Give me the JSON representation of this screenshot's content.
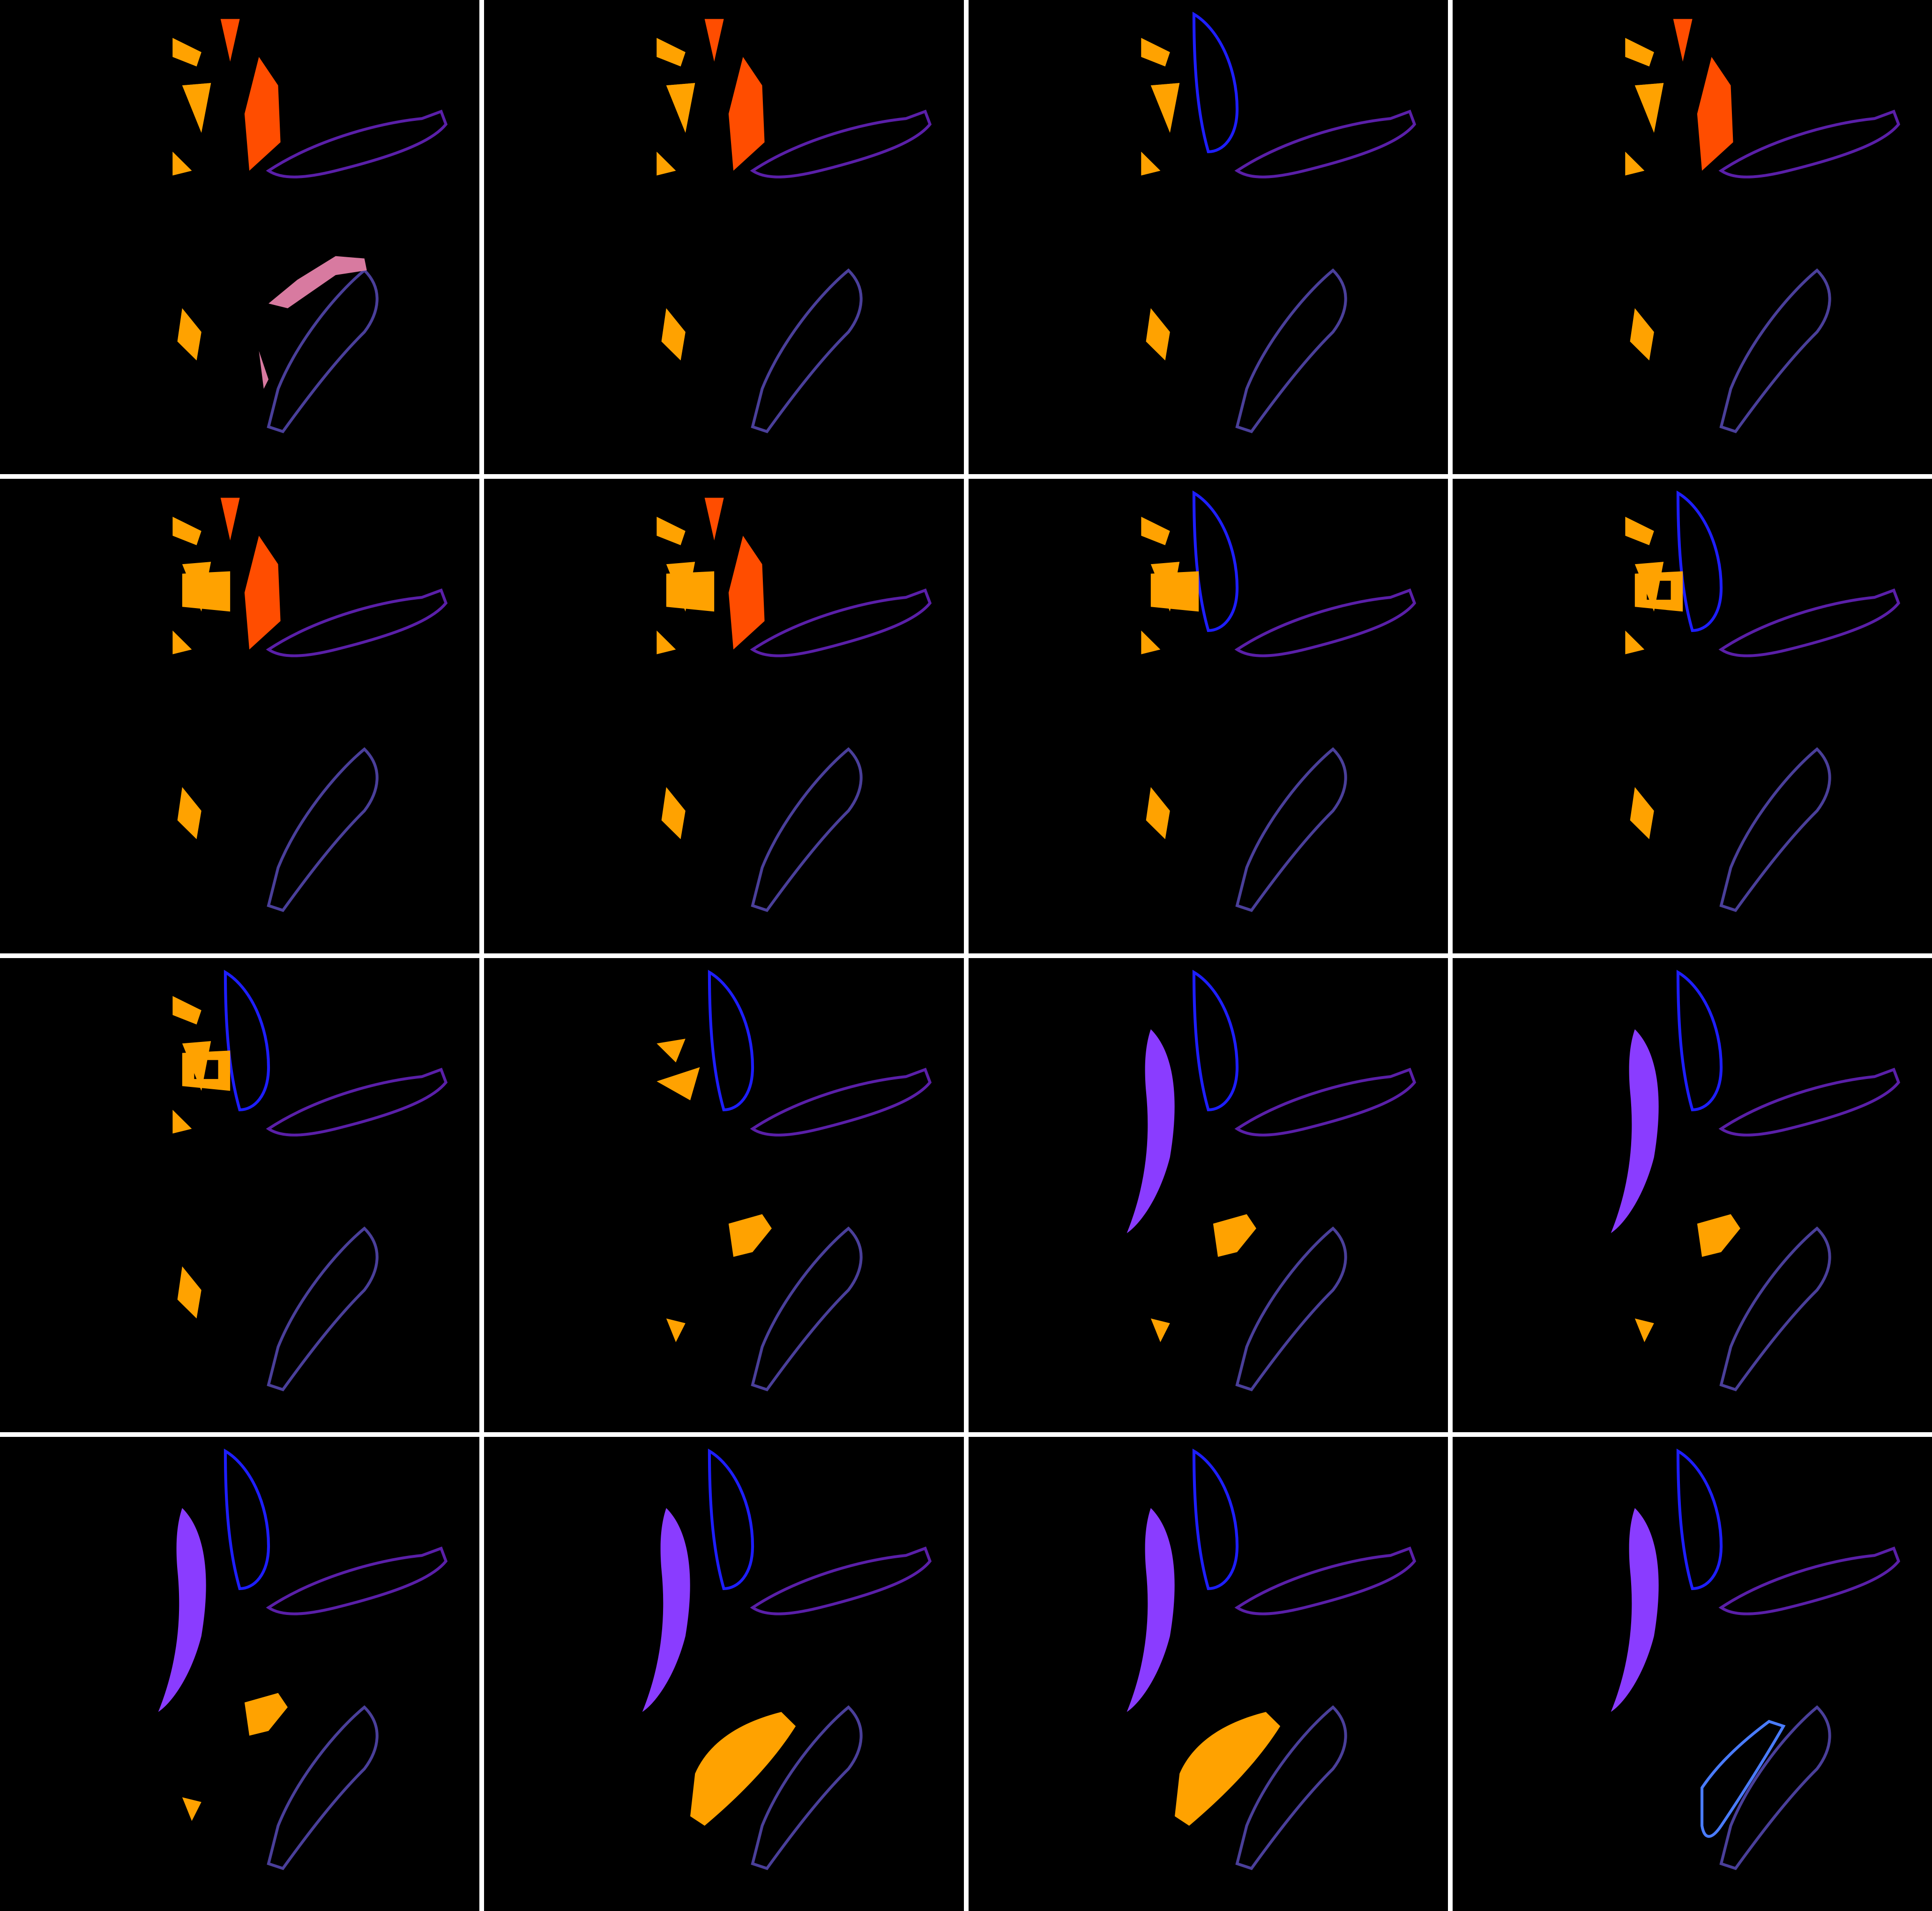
{
  "figure": {
    "rows": 4,
    "cols": 4,
    "background_color": "#000000",
    "divider_color": "#ffffff",
    "colors": {
      "orange": "#FFA200",
      "red_orange": "#FF4D00",
      "blue": "#1E1EFF",
      "purple": "#8A3CFF",
      "dark_purple": "#5A1FA8",
      "slate_blue": "#4A3F9A",
      "pink": "#D87AA0",
      "light_blue": "#4A7CFF"
    },
    "panels": [
      {
        "id": "panel-1",
        "upper": [
          [
            "orange",
            "orange-bits"
          ],
          [
            "red_orange",
            "red-slab"
          ]
        ],
        "lower": [
          [
            "pink",
            "pink-blob"
          ],
          [
            "orange",
            "orange-bits"
          ]
        ]
      },
      {
        "id": "panel-2",
        "upper": [
          [
            "red_orange",
            "red-slab"
          ],
          [
            "orange",
            "orange-bits"
          ]
        ],
        "lower": [
          [
            "slate_blue",
            "banana-outline"
          ],
          [
            "orange",
            "orange-bits"
          ]
        ]
      },
      {
        "id": "panel-3",
        "upper": [
          [
            "blue",
            "blue-outline"
          ],
          [
            "orange",
            "orange-bits"
          ]
        ],
        "lower": [
          [
            "slate_blue",
            "banana-outline"
          ],
          [
            "orange",
            "orange-bits"
          ]
        ]
      },
      {
        "id": "panel-4",
        "upper": [
          [
            "red_orange",
            "red-slab"
          ],
          [
            "orange",
            "orange-bits"
          ]
        ],
        "lower": [
          [
            "slate_blue",
            "banana-outline"
          ],
          [
            "orange",
            "orange-bits"
          ]
        ]
      },
      {
        "id": "panel-5",
        "upper": [
          [
            "red_orange",
            "red-slab"
          ],
          [
            "orange",
            "orange-square"
          ]
        ],
        "lower": [
          [
            "slate_blue",
            "banana-outline"
          ],
          [
            "orange",
            "orange-bits"
          ]
        ]
      },
      {
        "id": "panel-6",
        "upper": [
          [
            "red_orange",
            "red-slab"
          ],
          [
            "orange",
            "orange-square"
          ]
        ],
        "lower": [
          [
            "slate_blue",
            "banana-outline"
          ],
          [
            "orange",
            "orange-bits"
          ]
        ]
      },
      {
        "id": "panel-7",
        "upper": [
          [
            "blue",
            "blue-outline"
          ],
          [
            "orange",
            "orange-square"
          ]
        ],
        "lower": [
          [
            "slate_blue",
            "banana-outline"
          ],
          [
            "orange",
            "orange-bits"
          ]
        ]
      },
      {
        "id": "panel-8",
        "upper": [
          [
            "blue",
            "blue-outline"
          ],
          [
            "orange",
            "orange-square-hole"
          ]
        ],
        "lower": [
          [
            "slate_blue",
            "banana-outline"
          ],
          [
            "orange",
            "orange-bits"
          ]
        ]
      },
      {
        "id": "panel-9",
        "upper": [
          [
            "blue",
            "blue-outline"
          ],
          [
            "orange",
            "orange-square-hole"
          ]
        ],
        "lower": [
          [
            "slate_blue",
            "banana-outline"
          ],
          [
            "orange",
            "orange-bits"
          ]
        ]
      },
      {
        "id": "panel-10",
        "upper": [
          [
            "blue",
            "blue-outline"
          ],
          [
            "orange",
            "orange-triangles"
          ]
        ],
        "lower": [
          [
            "slate_blue",
            "banana-outline"
          ],
          [
            "orange",
            "orange-wedge"
          ]
        ]
      },
      {
        "id": "panel-11",
        "upper": [
          [
            "blue",
            "blue-outline"
          ],
          [
            "purple",
            "purple-crescent"
          ]
        ],
        "lower": [
          [
            "slate_blue",
            "banana-outline"
          ],
          [
            "orange",
            "orange-wedge"
          ]
        ]
      },
      {
        "id": "panel-12",
        "upper": [
          [
            "blue",
            "blue-outline"
          ],
          [
            "purple",
            "purple-crescent"
          ]
        ],
        "lower": [
          [
            "slate_blue",
            "banana-outline"
          ],
          [
            "orange",
            "orange-wedge"
          ]
        ]
      },
      {
        "id": "panel-13",
        "upper": [
          [
            "blue",
            "blue-outline"
          ],
          [
            "purple",
            "purple-crescent"
          ]
        ],
        "lower": [
          [
            "slate_blue",
            "banana-outline"
          ],
          [
            "orange",
            "orange-wedge"
          ]
        ]
      },
      {
        "id": "panel-14",
        "upper": [
          [
            "blue",
            "blue-outline"
          ],
          [
            "purple",
            "purple-crescent"
          ]
        ],
        "lower": [
          [
            "slate_blue",
            "banana-outline"
          ],
          [
            "orange",
            "orange-big"
          ]
        ]
      },
      {
        "id": "panel-15",
        "upper": [
          [
            "blue",
            "blue-outline"
          ],
          [
            "purple",
            "purple-crescent"
          ]
        ],
        "lower": [
          [
            "slate_blue",
            "banana-outline"
          ],
          [
            "orange",
            "orange-big"
          ]
        ]
      },
      {
        "id": "panel-16",
        "upper": [
          [
            "blue",
            "blue-outline"
          ],
          [
            "purple",
            "purple-crescent"
          ]
        ],
        "lower": [
          [
            "slate_blue",
            "banana-outline"
          ],
          [
            "light_blue",
            "light-blue-outline"
          ]
        ]
      }
    ]
  }
}
